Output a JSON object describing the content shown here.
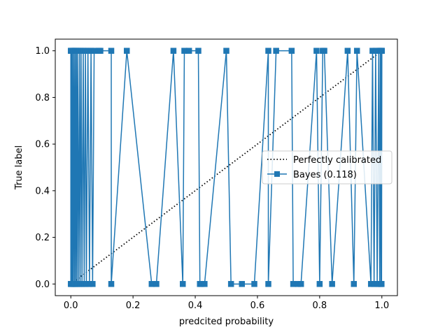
{
  "chart_data": {
    "type": "line",
    "xlabel": "predcited probability",
    "ylabel": "True label",
    "xlim": [
      -0.05,
      1.05
    ],
    "ylim": [
      -0.05,
      1.05
    ],
    "x_ticks": [
      "0.0",
      "0.2",
      "0.4",
      "0.6",
      "0.8",
      "1.0"
    ],
    "y_ticks": [
      "0.0",
      "0.2",
      "0.4",
      "0.6",
      "0.8",
      "1.0"
    ],
    "grid": false,
    "legend_position": "center-right",
    "colors": {
      "bayes": "#1f77b4",
      "reference": "#000000"
    },
    "series": [
      {
        "name": "Perfectly calibrated",
        "style": "dotted",
        "marker": "none",
        "x": [
          0,
          1
        ],
        "y": [
          0,
          1
        ]
      },
      {
        "name": "Bayes (0.118)",
        "style": "solid",
        "marker": "square",
        "x": [
          0.0,
          0.0,
          0.002,
          0.003,
          0.005,
          0.006,
          0.008,
          0.01,
          0.012,
          0.014,
          0.016,
          0.018,
          0.02,
          0.022,
          0.025,
          0.028,
          0.03,
          0.033,
          0.036,
          0.04,
          0.043,
          0.047,
          0.05,
          0.055,
          0.06,
          0.065,
          0.07,
          0.075,
          0.09,
          0.095,
          0.13,
          0.13,
          0.18,
          0.26,
          0.275,
          0.33,
          0.36,
          0.365,
          0.38,
          0.41,
          0.415,
          0.42,
          0.43,
          0.5,
          0.515,
          0.55,
          0.59,
          0.635,
          0.635,
          0.66,
          0.71,
          0.715,
          0.73,
          0.74,
          0.79,
          0.8,
          0.81,
          0.815,
          0.84,
          0.89,
          0.91,
          0.92,
          0.965,
          0.97,
          0.975,
          0.98,
          0.985,
          0.99,
          0.993,
          0.995,
          0.997,
          0.998,
          0.999,
          1.0
        ],
        "y": [
          0,
          1,
          0,
          1,
          0,
          1,
          0,
          1,
          0,
          1,
          0,
          1,
          0,
          1,
          0,
          1,
          0,
          1,
          0,
          1,
          0,
          1,
          0,
          1,
          0,
          1,
          0,
          1,
          1,
          1,
          1,
          0,
          1,
          0,
          0,
          1,
          0,
          1,
          1,
          1,
          0,
          0,
          0,
          1,
          0,
          0,
          0,
          1,
          0,
          1,
          1,
          0,
          0,
          0,
          1,
          0,
          1,
          1,
          0,
          1,
          0,
          1,
          0,
          1,
          0,
          1,
          0,
          1,
          0,
          1,
          0,
          1,
          0,
          1
        ]
      }
    ]
  }
}
